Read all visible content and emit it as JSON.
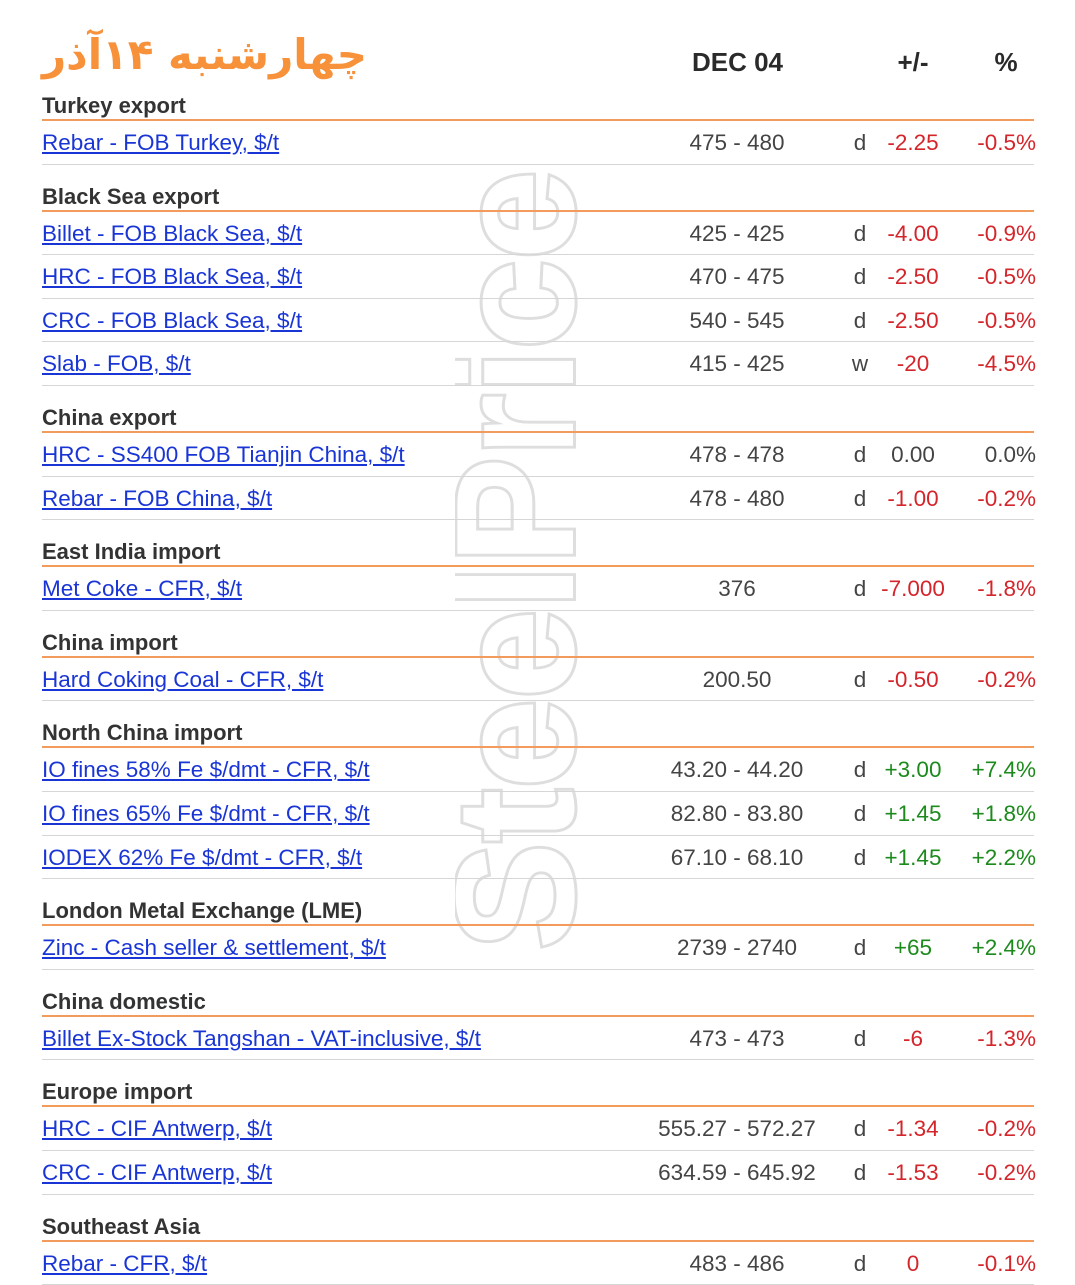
{
  "header": {
    "persian_date": "چهارشنبه ۱۴آذر",
    "date_col": "DEC 04",
    "change_col": "+/-",
    "pct_col": "%"
  },
  "watermark": "SteelPrice",
  "sections": [
    {
      "title": "Turkey export",
      "rows": [
        {
          "name": "Rebar - FOB Turkey, $/t",
          "range": "475 - 480",
          "freq": "d",
          "change": "-2.25",
          "pct": "-0.5%",
          "trend": "neg"
        }
      ]
    },
    {
      "title": "Black Sea export",
      "rows": [
        {
          "name": "Billet - FOB Black Sea, $/t",
          "range": "425 - 425",
          "freq": "d",
          "change": "-4.00",
          "pct": "-0.9%",
          "trend": "neg"
        },
        {
          "name": "HRC - FOB Black Sea, $/t",
          "range": "470 - 475",
          "freq": "d",
          "change": "-2.50",
          "pct": "-0.5%",
          "trend": "neg"
        },
        {
          "name": "CRC - FOB Black Sea, $/t",
          "range": "540 - 545",
          "freq": "d",
          "change": "-2.50",
          "pct": "-0.5%",
          "trend": "neg"
        },
        {
          "name": "Slab - FOB, $/t",
          "range": "415 - 425",
          "freq": "w",
          "change": "-20",
          "pct": "-4.5%",
          "trend": "neg"
        }
      ]
    },
    {
      "title": "China export",
      "rows": [
        {
          "name": "HRC - SS400 FOB Tianjin China, $/t",
          "range": "478 - 478",
          "freq": "d",
          "change": "0.00",
          "pct": "0.0%",
          "trend": "neu"
        },
        {
          "name": "Rebar - FOB China, $/t",
          "range": "478 - 480",
          "freq": "d",
          "change": "-1.00",
          "pct": "-0.2%",
          "trend": "neg"
        }
      ]
    },
    {
      "title": "East India import",
      "rows": [
        {
          "name": "Met Coke - CFR, $/t",
          "range": "376",
          "freq": "d",
          "change": "-7.000",
          "pct": "-1.8%",
          "trend": "neg"
        }
      ]
    },
    {
      "title": "China import",
      "rows": [
        {
          "name": "Hard Coking Coal - CFR, $/t",
          "range": "200.50",
          "freq": "d",
          "change": "-0.50",
          "pct": "-0.2%",
          "trend": "neg"
        }
      ]
    },
    {
      "title": "North China import",
      "rows": [
        {
          "name": "IO fines 58% Fe $/dmt - CFR, $/t",
          "range": "43.20 - 44.20",
          "freq": "d",
          "change": "+3.00",
          "pct": "+7.4%",
          "trend": "pos"
        },
        {
          "name": "IO fines 65% Fe $/dmt - CFR, $/t",
          "range": "82.80 - 83.80",
          "freq": "d",
          "change": "+1.45",
          "pct": "+1.8%",
          "trend": "pos"
        },
        {
          "name": "IODEX 62% Fe $/dmt - CFR, $/t",
          "range": "67.10 - 68.10",
          "freq": "d",
          "change": "+1.45",
          "pct": "+2.2%",
          "trend": "pos"
        }
      ]
    },
    {
      "title": "London Metal Exchange (LME)",
      "rows": [
        {
          "name": "Zinc - Cash seller & settlement, $/t",
          "range": "2739 - 2740",
          "freq": "d",
          "change": "+65",
          "pct": "+2.4%",
          "trend": "pos"
        }
      ]
    },
    {
      "title": "China domestic",
      "rows": [
        {
          "name": "Billet Ex-Stock Tangshan - VAT-inclusive, $/t",
          "range": "473 - 473",
          "freq": "d",
          "change": "-6",
          "pct": "-1.3%",
          "trend": "neg"
        }
      ]
    },
    {
      "title": "Europe import",
      "rows": [
        {
          "name": "HRC - CIF Antwerp, $/t",
          "range": "555.27 - 572.27",
          "freq": "d",
          "change": "-1.34",
          "pct": "-0.2%",
          "trend": "neg"
        },
        {
          "name": "CRC - CIF Antwerp, $/t",
          "range": "634.59 - 645.92",
          "freq": "d",
          "change": "-1.53",
          "pct": "-0.2%",
          "trend": "neg"
        }
      ]
    },
    {
      "title": "Southeast Asia",
      "rows": [
        {
          "name": "Rebar - CFR, $/t",
          "range": "483 - 486",
          "freq": "d",
          "change": "0",
          "pct": "-0.1%",
          "trend": "neg"
        }
      ]
    }
  ],
  "colors": {
    "accent": "#f7913a",
    "link": "#1a35d6",
    "negative": "#d4252b",
    "positive": "#1c8a1c",
    "divider": "#f29b5c"
  }
}
